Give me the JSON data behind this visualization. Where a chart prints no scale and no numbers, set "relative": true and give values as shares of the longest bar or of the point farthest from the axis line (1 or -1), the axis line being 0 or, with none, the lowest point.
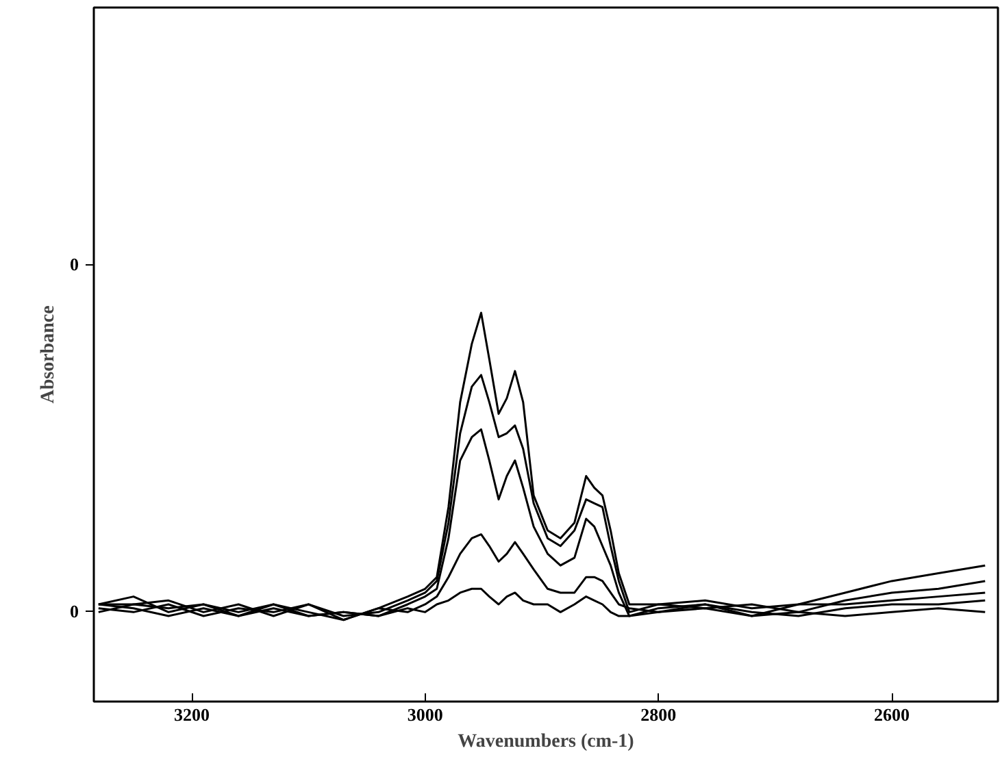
{
  "chart_data": {
    "type": "line",
    "xlabel": "Wavenumbers (cm-1)",
    "ylabel": "Absorbance",
    "relative": true,
    "xlim": [
      3284,
      2509
    ],
    "xticks": [
      3200,
      3000,
      2800,
      2600
    ],
    "annotations": [
      "0",
      "0"
    ],
    "x": [
      3280,
      3250,
      3220,
      3190,
      3160,
      3130,
      3100,
      3070,
      3040,
      3015,
      3000,
      2990,
      2980,
      2970,
      2960,
      2952,
      2945,
      2937,
      2930,
      2923,
      2916,
      2907,
      2895,
      2884,
      2872,
      2862,
      2855,
      2848,
      2841,
      2834,
      2825,
      2800,
      2760,
      2720,
      2680,
      2640,
      2600,
      2560,
      2520
    ],
    "grid": false,
    "line_style": "solid",
    "marker": "none",
    "series": [
      {
        "color": "#000000",
        "values": [
          0.25,
          0.27,
          0.23,
          0.25,
          0.22,
          0.25,
          0.23,
          0.21,
          0.24,
          0.27,
          0.29,
          0.32,
          0.5,
          0.77,
          0.92,
          1.0,
          0.88,
          0.74,
          0.78,
          0.85,
          0.77,
          0.53,
          0.44,
          0.42,
          0.46,
          0.58,
          0.55,
          0.53,
          0.44,
          0.33,
          0.25,
          0.25,
          0.26,
          0.24,
          0.25,
          0.28,
          0.31,
          0.33,
          0.35
        ]
      },
      {
        "color": "#000000",
        "values": [
          0.25,
          0.25,
          0.26,
          0.23,
          0.25,
          0.22,
          0.25,
          0.22,
          0.23,
          0.26,
          0.28,
          0.31,
          0.46,
          0.69,
          0.81,
          0.84,
          0.77,
          0.68,
          0.69,
          0.71,
          0.65,
          0.51,
          0.42,
          0.4,
          0.44,
          0.52,
          0.51,
          0.5,
          0.4,
          0.31,
          0.23,
          0.25,
          0.24,
          0.25,
          0.23,
          0.26,
          0.28,
          0.29,
          0.31
        ]
      },
      {
        "color": "#000000",
        "values": [
          0.23,
          0.25,
          0.24,
          0.25,
          0.23,
          0.25,
          0.22,
          0.23,
          0.22,
          0.25,
          0.27,
          0.29,
          0.42,
          0.62,
          0.68,
          0.7,
          0.62,
          0.52,
          0.58,
          0.62,
          0.55,
          0.45,
          0.38,
          0.35,
          0.37,
          0.47,
          0.45,
          0.4,
          0.35,
          0.28,
          0.22,
          0.24,
          0.25,
          0.22,
          0.25,
          0.25,
          0.26,
          0.27,
          0.28
        ]
      },
      {
        "color": "#000000",
        "values": [
          0.24,
          0.23,
          0.25,
          0.22,
          0.24,
          0.23,
          0.25,
          0.21,
          0.24,
          0.23,
          0.25,
          0.27,
          0.32,
          0.38,
          0.42,
          0.43,
          0.4,
          0.36,
          0.38,
          0.41,
          0.38,
          0.34,
          0.29,
          0.28,
          0.28,
          0.32,
          0.32,
          0.31,
          0.28,
          0.25,
          0.24,
          0.23,
          0.25,
          0.23,
          0.22,
          0.24,
          0.25,
          0.25,
          0.26
        ]
      },
      {
        "color": "#000000",
        "values": [
          0.25,
          0.24,
          0.22,
          0.24,
          0.22,
          0.24,
          0.22,
          0.23,
          0.22,
          0.24,
          0.23,
          0.25,
          0.26,
          0.28,
          0.29,
          0.29,
          0.27,
          0.25,
          0.27,
          0.28,
          0.26,
          0.25,
          0.25,
          0.23,
          0.25,
          0.27,
          0.26,
          0.25,
          0.23,
          0.22,
          0.22,
          0.23,
          0.24,
          0.22,
          0.23,
          0.22,
          0.23,
          0.24,
          0.23
        ]
      }
    ]
  }
}
